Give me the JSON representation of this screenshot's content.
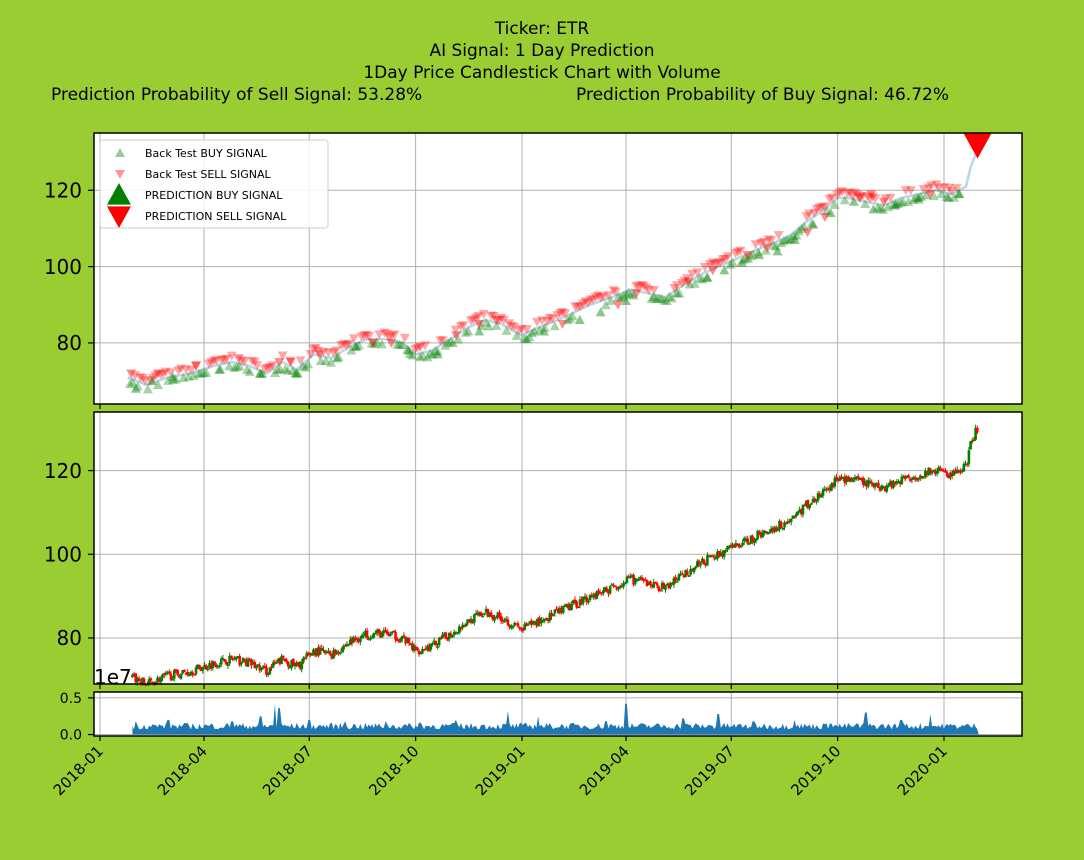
{
  "title": {
    "line1": "Ticker: ETR",
    "line2": "AI Signal: 1 Day Prediction",
    "line3": "1Day Price Candlestick Chart with Volume",
    "sell_prob": "Prediction Probability of Sell Signal: 53.28%",
    "buy_prob": "Prediction Probability of Buy Signal: 46.72%"
  },
  "colors": {
    "background": "#9acd32",
    "buy": "#008000",
    "sell": "#ff0000",
    "volume": "#1f77b4",
    "price_line": "#1f77b4"
  },
  "chart_data": [
    {
      "type": "line",
      "panel": "signals",
      "legend": {
        "placement": "top-left",
        "entries": [
          "Back Test BUY SIGNAL",
          "Back Test SELL SIGNAL",
          "PREDICTION BUY SIGNAL",
          "PREDICTION SELL SIGNAL"
        ]
      },
      "ylim": [
        64,
        135
      ],
      "yticks": [
        80,
        100,
        120
      ],
      "grid": true,
      "price_series": {
        "x": [
          "2018-01-25",
          "2018-02-10",
          "2018-03-01",
          "2018-03-20",
          "2018-04-10",
          "2018-04-25",
          "2018-05-10",
          "2018-05-25",
          "2018-06-08",
          "2018-06-20",
          "2018-07-05",
          "2018-07-20",
          "2018-08-05",
          "2018-08-20",
          "2018-09-05",
          "2018-09-20",
          "2018-10-01",
          "2018-10-15",
          "2018-10-31",
          "2018-11-15",
          "2018-11-30",
          "2018-12-14",
          "2018-12-31",
          "2019-01-15",
          "2019-02-01",
          "2019-02-15",
          "2019-03-01",
          "2019-03-20",
          "2019-04-05",
          "2019-04-20",
          "2019-05-05",
          "2019-05-20",
          "2019-06-05",
          "2019-06-20",
          "2019-07-05",
          "2019-07-20",
          "2019-08-05",
          "2019-08-20",
          "2019-09-05",
          "2019-09-20",
          "2019-10-01",
          "2019-10-10",
          "2019-10-25",
          "2019-11-10",
          "2019-11-25",
          "2019-12-10",
          "2019-12-25",
          "2020-01-08",
          "2020-01-14",
          "2020-01-20",
          "2020-01-24",
          "2020-01-29"
        ],
        "y": [
          71,
          69,
          71,
          72,
          74,
          75,
          74,
          72,
          75,
          73,
          77,
          76,
          79,
          81,
          81,
          80,
          77,
          78,
          81,
          84,
          86,
          85,
          82,
          84,
          86,
          88,
          90,
          92,
          94,
          93,
          92,
          95,
          98,
          100,
          102,
          104,
          106,
          108,
          112,
          115,
          118,
          118,
          117,
          116,
          118,
          119,
          120,
          119,
          120,
          121,
          126,
          130
        ]
      },
      "buy_signals": {
        "x": [
          "2018-02-01",
          "2018-02-15",
          "2018-03-05",
          "2018-04-15",
          "2018-05-20",
          "2018-06-20",
          "2018-07-25",
          "2018-08-10",
          "2018-09-25",
          "2018-10-20",
          "2018-11-25",
          "2019-01-05",
          "2019-01-20",
          "2019-02-20",
          "2019-03-10",
          "2019-04-01",
          "2019-04-25",
          "2019-05-15",
          "2019-06-10",
          "2019-06-25",
          "2019-07-10",
          "2019-07-25",
          "2019-08-10",
          "2019-08-25",
          "2019-09-10",
          "2019-09-25",
          "2019-10-15",
          "2019-11-01",
          "2019-11-20",
          "2019-12-10",
          "2020-01-05",
          "2020-01-14"
        ],
        "y": [
          68,
          70,
          71,
          73,
          72,
          72,
          76,
          79,
          78,
          77,
          83,
          81,
          83,
          86,
          88,
          91,
          92,
          93,
          97,
          99,
          101,
          103,
          104,
          107,
          111,
          114,
          117,
          115,
          116,
          118,
          118,
          119
        ]
      },
      "sell_signals": {
        "x": [
          "2018-01-28",
          "2018-02-20",
          "2018-03-25",
          "2018-05-01",
          "2018-06-05",
          "2018-06-15",
          "2018-07-10",
          "2018-08-25",
          "2018-09-10",
          "2018-10-05",
          "2018-11-05",
          "2018-11-25",
          "2018-12-10",
          "2019-02-05",
          "2019-03-25",
          "2019-04-10",
          "2019-05-25",
          "2019-06-15",
          "2019-07-15",
          "2019-08-01",
          "2019-09-05",
          "2019-09-20",
          "2019-10-20",
          "2019-10-30",
          "2019-11-10",
          "2019-12-20"
        ],
        "y": [
          72,
          72,
          74,
          76,
          75,
          75,
          77,
          80,
          80,
          79,
          82,
          85,
          86,
          85,
          90,
          93,
          96,
          99,
          103,
          105,
          109,
          113,
          118,
          119,
          117,
          119
        ]
      },
      "prediction": {
        "signal": "sell",
        "x": "2020-01-30",
        "y": 132
      }
    },
    {
      "type": "bar",
      "panel": "candlestick",
      "ylim": [
        69,
        134
      ],
      "yticks": [
        80,
        100,
        120
      ],
      "grid": true
    },
    {
      "type": "area",
      "panel": "volume",
      "offset_label": "1e7",
      "ylim": [
        -0.02,
        0.58
      ],
      "yticks": [
        "0.0",
        "0.5"
      ],
      "grid": true,
      "x_tick_labels": [
        "2018-01",
        "2018-04",
        "2018-07",
        "2018-10",
        "2019-01",
        "2019-04",
        "2019-07",
        "2019-10",
        "2020-01"
      ],
      "spikes": {
        "x": [
          "2018-02-01",
          "2018-03-01",
          "2018-04-25",
          "2018-05-20",
          "2018-06-01",
          "2018-06-05",
          "2018-07-01",
          "2018-08-01",
          "2018-09-05",
          "2018-10-05",
          "2018-11-05",
          "2018-12-20",
          "2019-01-15",
          "2019-03-15",
          "2019-04-01",
          "2019-05-20",
          "2019-06-20",
          "2019-07-20",
          "2019-08-25",
          "2019-09-25",
          "2019-10-25",
          "2019-11-25",
          "2019-12-20",
          "2020-01-15"
        ],
        "y": [
          0.18,
          0.2,
          0.18,
          0.25,
          0.42,
          0.36,
          0.2,
          0.18,
          0.18,
          0.16,
          0.2,
          0.32,
          0.25,
          0.18,
          0.42,
          0.22,
          0.28,
          0.18,
          0.2,
          0.15,
          0.3,
          0.2,
          0.28,
          0.1
        ]
      }
    }
  ]
}
